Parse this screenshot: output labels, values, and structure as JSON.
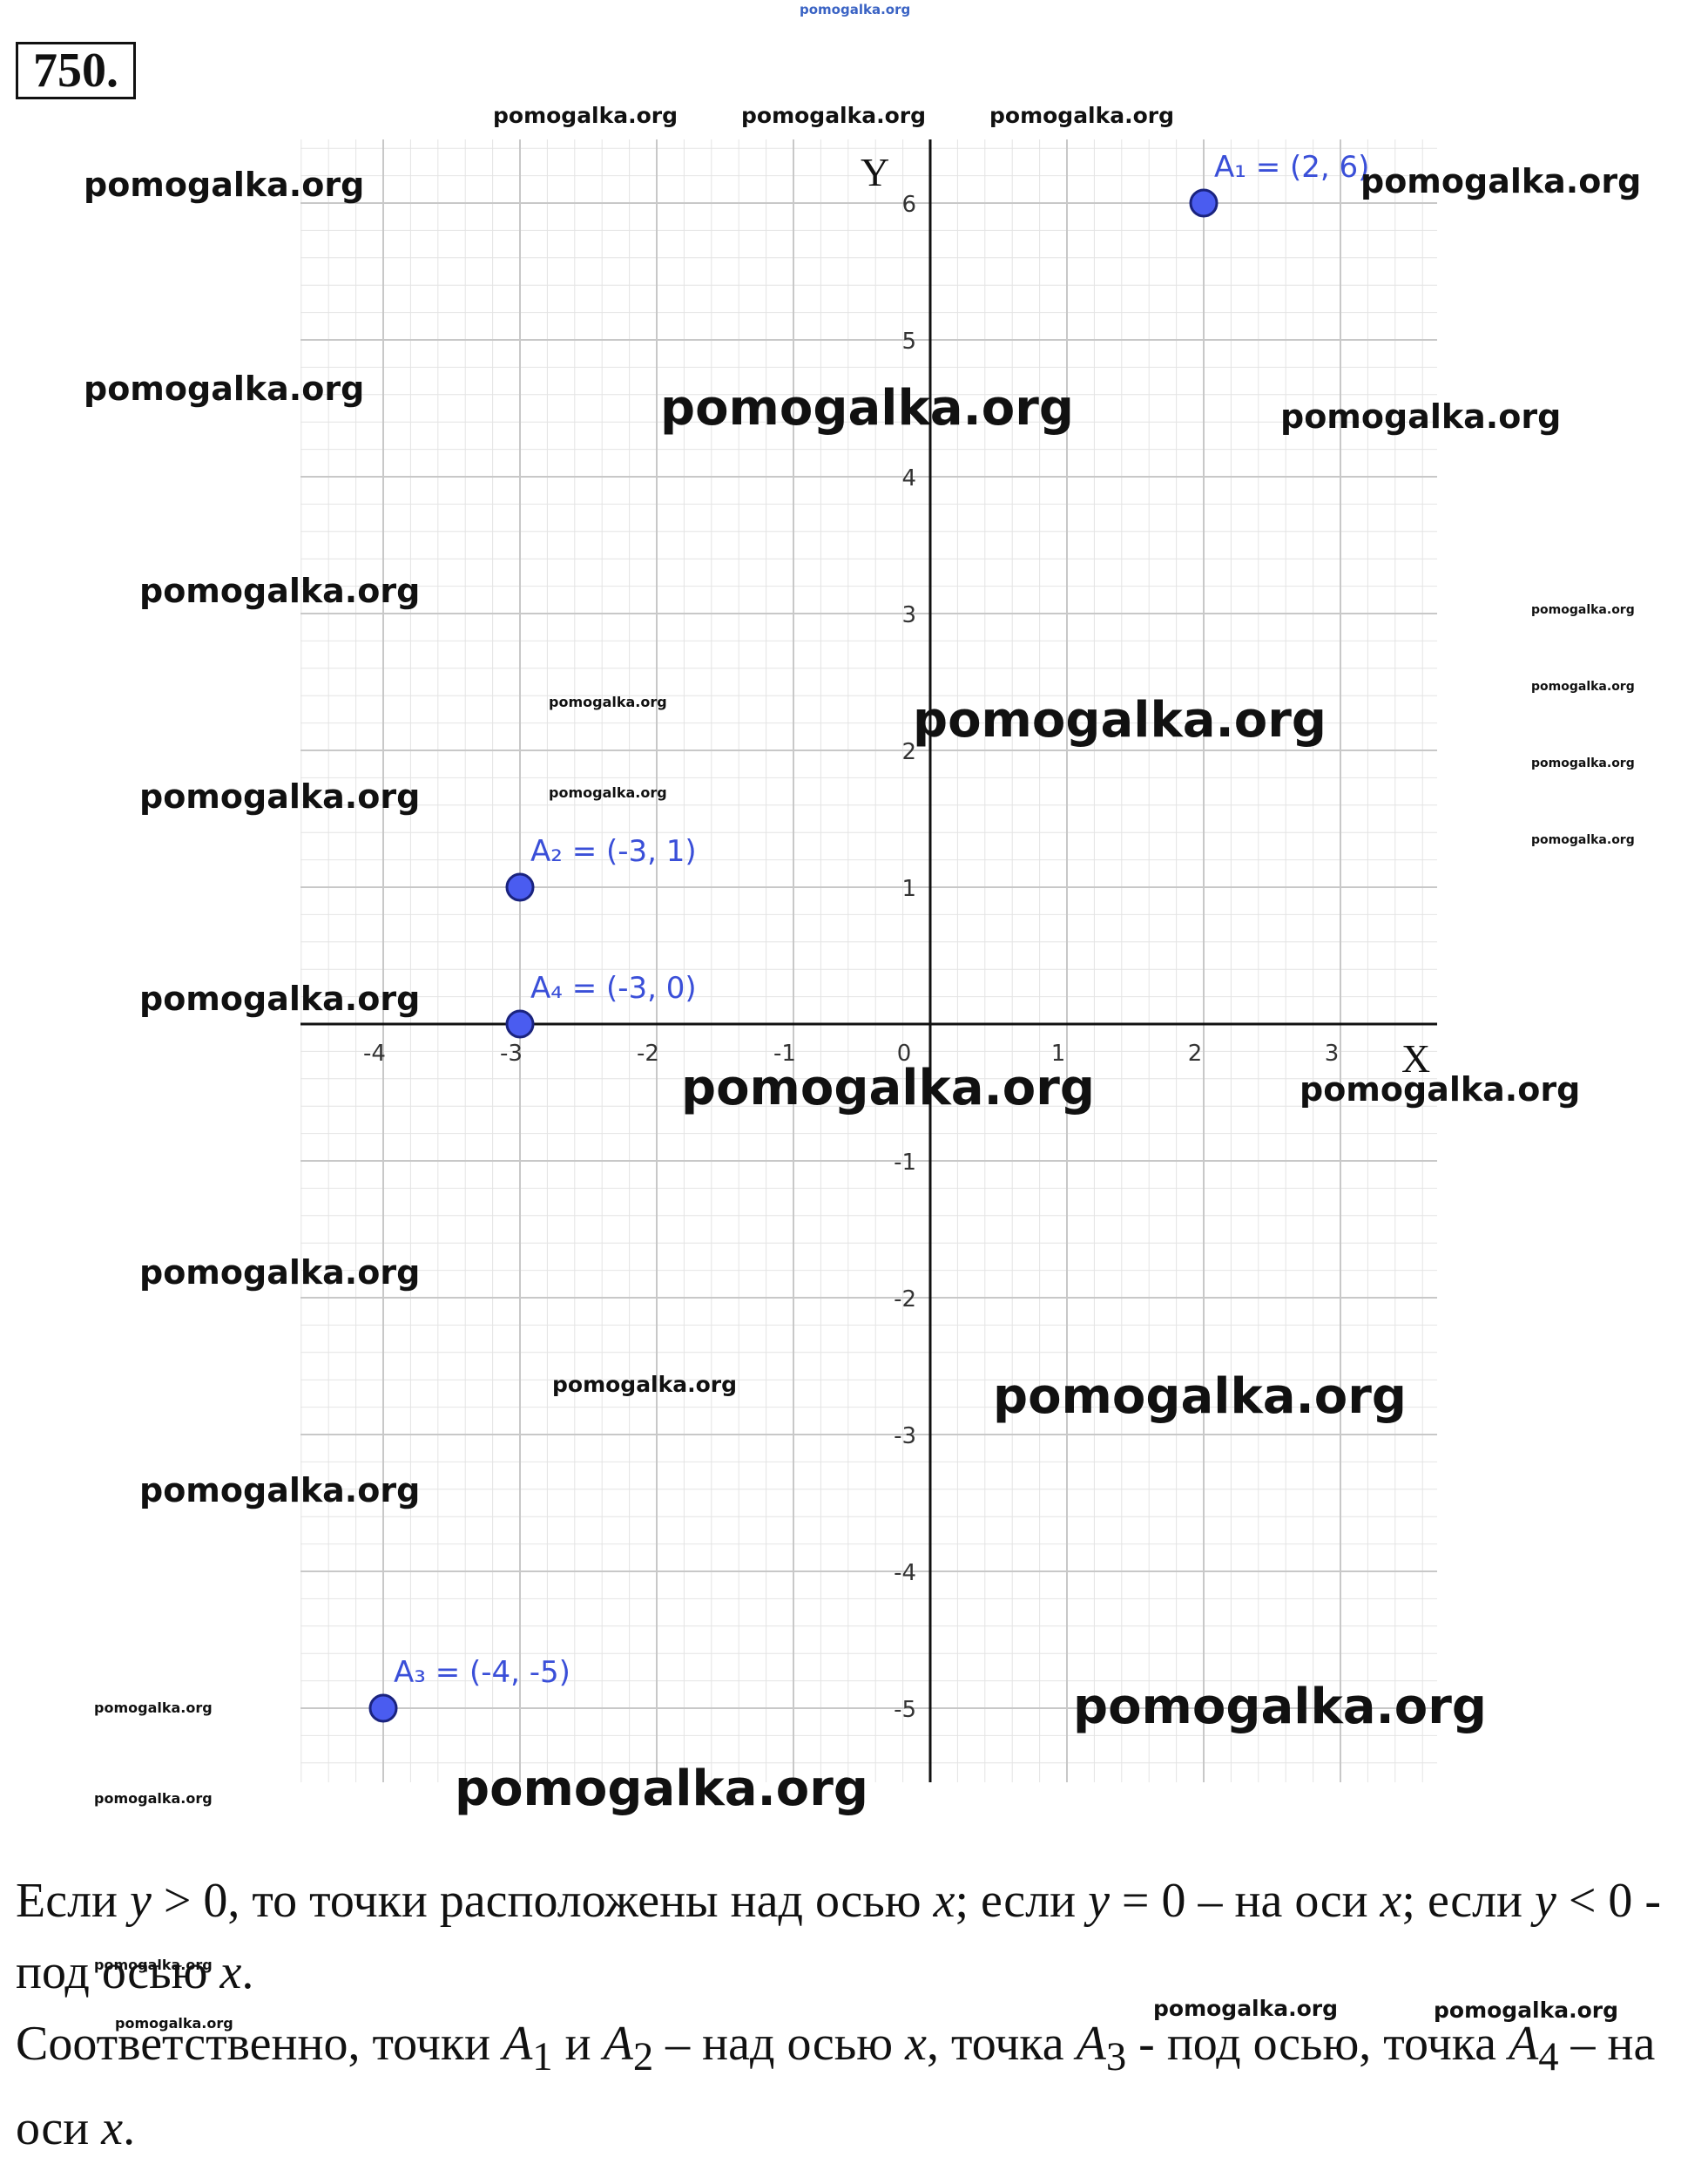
{
  "problem": {
    "number": "750."
  },
  "watermark": {
    "text": "pomogalka.org"
  },
  "chart_data": {
    "type": "scatter",
    "xlabel": "X",
    "ylabel": "Y",
    "xlim": [
      -4.6,
      3.7
    ],
    "ylim": [
      -5.5,
      6.5
    ],
    "x_ticks": [
      -4,
      -3,
      -2,
      -1,
      0,
      1,
      2,
      3
    ],
    "y_ticks": [
      -5,
      -4,
      -3,
      -2,
      -1,
      1,
      2,
      3,
      4,
      5,
      6
    ],
    "x_tick_labels": [
      "-4",
      "-3",
      "-2",
      "-1",
      "0",
      "1",
      "2",
      "3"
    ],
    "y_tick_labels": [
      "-5",
      "-4",
      "-3",
      "-2",
      "-1",
      "1",
      "2",
      "3",
      "4",
      "5",
      "6"
    ],
    "grid": true,
    "points": [
      {
        "label": "A₁ = (2, 6)",
        "x": 2,
        "y": 6
      },
      {
        "label": "A₂ = (-3, 1)",
        "x": -3,
        "y": 1
      },
      {
        "label": "A₃ = (-4, -5)",
        "x": -4,
        "y": -5
      },
      {
        "label": "A₄ = (-3, 0)",
        "x": -3,
        "y": 0
      }
    ],
    "colors": {
      "point_fill": "#4a5cf0",
      "point_stroke": "#1a237e",
      "label": "#3a4fd8",
      "grid": "#c8c8c8",
      "axis": "#111111"
    }
  },
  "explanation": {
    "p1_a": "Если ",
    "p1_y1": "y",
    "p1_b": " > 0, то точки расположены над осью ",
    "p1_x1": "x",
    "p1_c": "; если ",
    "p1_y2": "y",
    "p1_d": " = 0 – на оси ",
    "p1_x2": "x",
    "p1_e": "; если ",
    "p1_y3": "y",
    "p1_f": " < 0 - под осью ",
    "p1_x3": "x",
    "p1_g": ".",
    "p2_a": "Соответственно, точки ",
    "p2_A1": "A",
    "p2_s1": "1",
    "p2_b": " и ",
    "p2_A2": "A",
    "p2_s2": "2",
    "p2_c": " – над осью ",
    "p2_x1": "x",
    "p2_d": ", точка ",
    "p2_A3": "A",
    "p2_s3": "3",
    "p2_e": " - под осью, точка ",
    "p2_A4": "A",
    "p2_s4": "4",
    "p2_f": " – на оси ",
    "p2_x2": "x",
    "p2_g": "."
  }
}
